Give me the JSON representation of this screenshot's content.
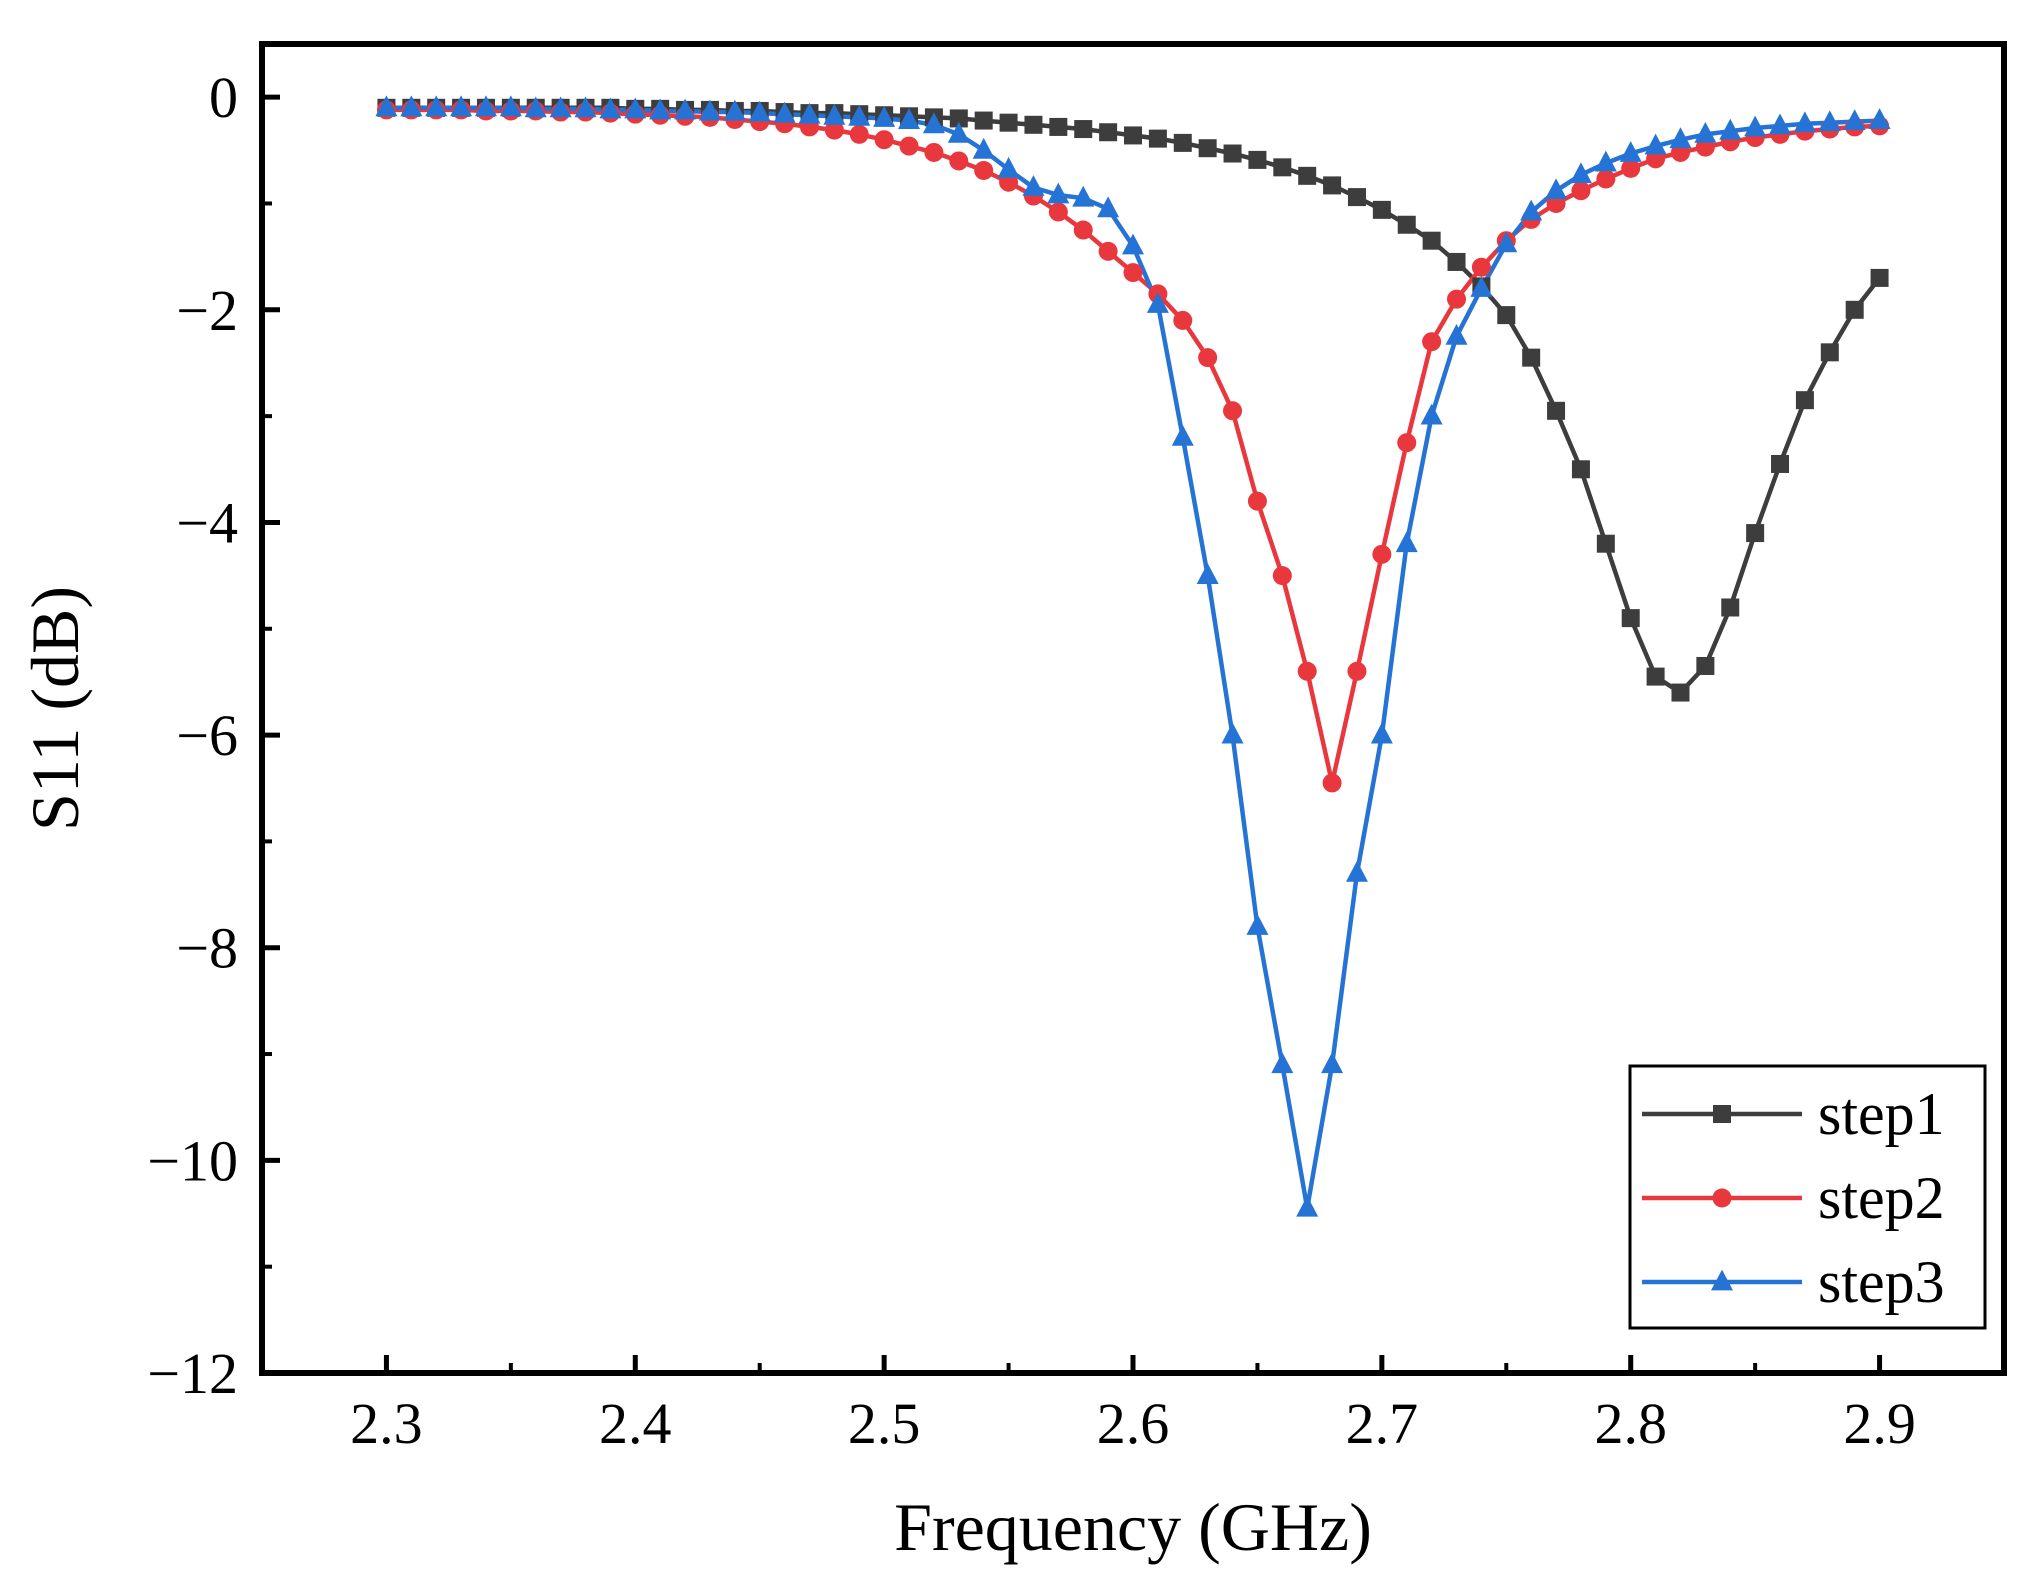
{
  "chart_data": {
    "type": "line",
    "title": "",
    "xlabel": "Frequency (GHz)",
    "ylabel": "S11 (dB)",
    "xlim": [
      2.25,
      2.95
    ],
    "ylim": [
      -12,
      0.5
    ],
    "xticks": [
      2.3,
      2.4,
      2.5,
      2.6,
      2.7,
      2.8,
      2.9
    ],
    "xtick_labels": [
      "2.3",
      "2.4",
      "2.5",
      "2.6",
      "2.7",
      "2.8",
      "2.9"
    ],
    "yticks": [
      0,
      -2,
      -4,
      -6,
      -8,
      -10,
      -12
    ],
    "ytick_labels": [
      "0",
      "−2",
      "−4",
      "−6",
      "−8",
      "−10",
      "−12"
    ],
    "grid": false,
    "legend_position": "bottom-right",
    "x": [
      2.3,
      2.31,
      2.32,
      2.33,
      2.34,
      2.35,
      2.36,
      2.37,
      2.38,
      2.39,
      2.4,
      2.41,
      2.42,
      2.43,
      2.44,
      2.45,
      2.46,
      2.47,
      2.48,
      2.49,
      2.5,
      2.51,
      2.52,
      2.53,
      2.54,
      2.55,
      2.56,
      2.57,
      2.58,
      2.59,
      2.6,
      2.61,
      2.62,
      2.63,
      2.64,
      2.65,
      2.66,
      2.67,
      2.68,
      2.69,
      2.7,
      2.71,
      2.72,
      2.73,
      2.74,
      2.75,
      2.76,
      2.77,
      2.78,
      2.79,
      2.8,
      2.81,
      2.82,
      2.83,
      2.84,
      2.85,
      2.86,
      2.87,
      2.88,
      2.89,
      2.9
    ],
    "series": [
      {
        "name": "step1",
        "color": "#3d3d3d",
        "marker": "square",
        "values": [
          -0.1,
          -0.1,
          -0.1,
          -0.1,
          -0.1,
          -0.1,
          -0.1,
          -0.1,
          -0.1,
          -0.1,
          -0.11,
          -0.11,
          -0.12,
          -0.12,
          -0.13,
          -0.13,
          -0.14,
          -0.15,
          -0.15,
          -0.16,
          -0.17,
          -0.18,
          -0.19,
          -0.2,
          -0.22,
          -0.24,
          -0.26,
          -0.28,
          -0.3,
          -0.33,
          -0.36,
          -0.39,
          -0.43,
          -0.48,
          -0.53,
          -0.59,
          -0.66,
          -0.74,
          -0.83,
          -0.94,
          -1.06,
          -1.2,
          -1.35,
          -1.55,
          -1.78,
          -2.05,
          -2.45,
          -2.95,
          -3.5,
          -4.2,
          -4.9,
          -5.45,
          -5.6,
          -5.35,
          -4.8,
          -4.1,
          -3.45,
          -2.85,
          -2.4,
          -2.0,
          -1.7
        ]
      },
      {
        "name": "step2",
        "color": "#e8383d",
        "marker": "circle",
        "values": [
          -0.12,
          -0.12,
          -0.12,
          -0.12,
          -0.13,
          -0.13,
          -0.13,
          -0.14,
          -0.14,
          -0.15,
          -0.16,
          -0.17,
          -0.18,
          -0.19,
          -0.21,
          -0.23,
          -0.25,
          -0.28,
          -0.31,
          -0.35,
          -0.4,
          -0.46,
          -0.52,
          -0.6,
          -0.69,
          -0.8,
          -0.93,
          -1.08,
          -1.25,
          -1.45,
          -1.65,
          -1.85,
          -2.1,
          -2.45,
          -2.95,
          -3.8,
          -4.5,
          -5.4,
          -6.45,
          -5.4,
          -4.3,
          -3.25,
          -2.3,
          -1.9,
          -1.6,
          -1.35,
          -1.15,
          -1.0,
          -0.88,
          -0.77,
          -0.67,
          -0.58,
          -0.52,
          -0.47,
          -0.42,
          -0.38,
          -0.35,
          -0.32,
          -0.3,
          -0.28,
          -0.27
        ]
      },
      {
        "name": "step3",
        "color": "#2673d6",
        "marker": "triangle",
        "values": [
          -0.1,
          -0.1,
          -0.1,
          -0.1,
          -0.1,
          -0.1,
          -0.11,
          -0.11,
          -0.11,
          -0.12,
          -0.12,
          -0.13,
          -0.13,
          -0.14,
          -0.14,
          -0.15,
          -0.16,
          -0.17,
          -0.18,
          -0.19,
          -0.2,
          -0.22,
          -0.26,
          -0.35,
          -0.5,
          -0.68,
          -0.85,
          -0.92,
          -0.95,
          -1.05,
          -1.4,
          -1.95,
          -3.2,
          -4.5,
          -6.0,
          -7.8,
          -9.1,
          -10.45,
          -9.1,
          -7.3,
          -6.0,
          -4.2,
          -3.0,
          -2.25,
          -1.8,
          -1.38,
          -1.08,
          -0.88,
          -0.73,
          -0.62,
          -0.53,
          -0.46,
          -0.4,
          -0.35,
          -0.32,
          -0.29,
          -0.27,
          -0.25,
          -0.24,
          -0.23,
          -0.22
        ]
      }
    ]
  }
}
